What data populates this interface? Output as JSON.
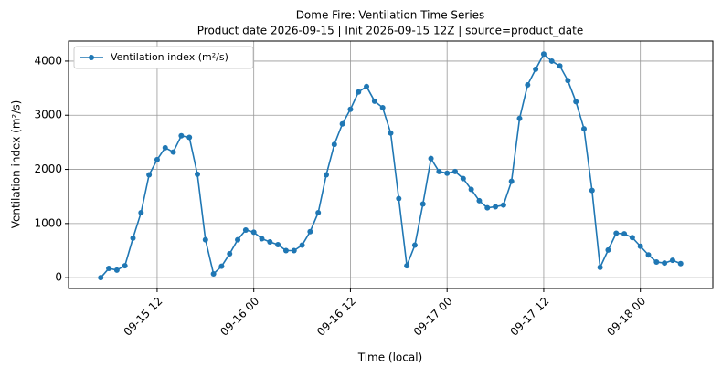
{
  "chart_data": {
    "type": "line",
    "title": "Dome Fire: Ventilation Time Series",
    "subtitle": "Product date 2026-09-15 | Init 2026-09-15 12Z | source=product_date",
    "x_label": "Time (local)",
    "y_label": "Ventilation index (m²/s)",
    "x": [
      "09-15 05",
      "09-15 06",
      "09-15 07",
      "09-15 08",
      "09-15 09",
      "09-15 10",
      "09-15 11",
      "09-15 12",
      "09-15 13",
      "09-15 14",
      "09-15 15",
      "09-15 16",
      "09-15 17",
      "09-15 18",
      "09-15 19",
      "09-15 20",
      "09-15 21",
      "09-15 22",
      "09-15 23",
      "09-16 00",
      "09-16 01",
      "09-16 02",
      "09-16 03",
      "09-16 04",
      "09-16 05",
      "09-16 06",
      "09-16 07",
      "09-16 08",
      "09-16 09",
      "09-16 10",
      "09-16 11",
      "09-16 12",
      "09-16 13",
      "09-16 14",
      "09-16 15",
      "09-16 16",
      "09-16 17",
      "09-16 18",
      "09-16 19",
      "09-16 20",
      "09-16 21",
      "09-16 22",
      "09-16 23",
      "09-17 00",
      "09-17 01",
      "09-17 02",
      "09-17 03",
      "09-17 04",
      "09-17 05",
      "09-17 06",
      "09-17 07",
      "09-17 08",
      "09-17 09",
      "09-17 10",
      "09-17 11",
      "09-17 12",
      "09-17 13",
      "09-17 14",
      "09-17 15",
      "09-17 16",
      "09-17 17",
      "09-17 18",
      "09-17 19",
      "09-17 20",
      "09-17 21",
      "09-17 22",
      "09-17 23",
      "09-18 00",
      "09-18 01",
      "09-18 02",
      "09-18 03",
      "09-18 04",
      "09-18 05"
    ],
    "series": [
      {
        "name": "Ventilation index (m²/s)",
        "color": "#1f77b4",
        "values": [
          0,
          170,
          140,
          220,
          730,
          1200,
          1900,
          2180,
          2400,
          2320,
          2620,
          2590,
          1910,
          700,
          70,
          210,
          440,
          700,
          880,
          840,
          720,
          660,
          610,
          500,
          500,
          600,
          850,
          1200,
          1900,
          2460,
          2840,
          3110,
          3430,
          3530,
          3260,
          3140,
          2670,
          1460,
          220,
          600,
          1360,
          2200,
          1960,
          1930,
          1960,
          1830,
          1630,
          1420,
          1290,
          1310,
          1340,
          1780,
          2940,
          3560,
          3850,
          4130,
          4000,
          3910,
          3640,
          3250,
          2750,
          1610,
          190,
          510,
          820,
          810,
          740,
          580,
          420,
          290,
          270,
          320,
          260
        ]
      }
    ],
    "xlim": [
      "09-15 01",
      "09-18 09"
    ],
    "xticks": [
      "09-15 12",
      "09-16 00",
      "09-16 12",
      "09-17 00",
      "09-17 12",
      "09-18 00"
    ],
    "ylim": [
      -200,
      4370
    ],
    "yticks": [
      0,
      1000,
      2000,
      3000,
      4000
    ],
    "grid": true,
    "legend": "upper left"
  }
}
